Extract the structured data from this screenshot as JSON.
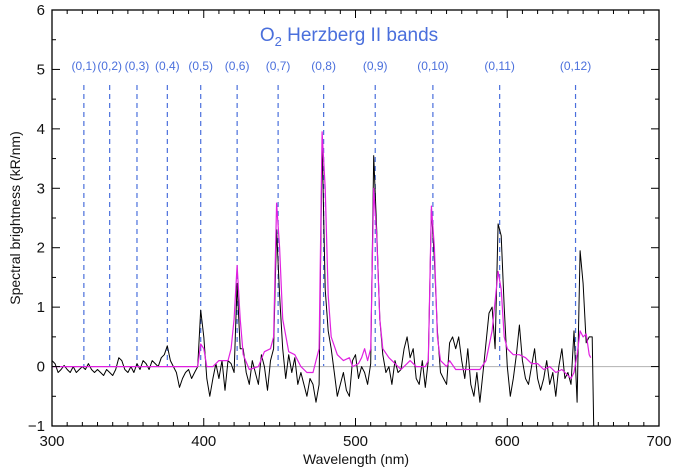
{
  "chart_data": {
    "type": "line",
    "title_main": "O",
    "title_sub": "2",
    "title_rest": " Herzberg II bands",
    "xlabel": "Wavelength (nm)",
    "ylabel": "Spectral brightness (kR/nm)",
    "xlim": [
      300,
      700
    ],
    "ylim": [
      -1,
      6
    ],
    "xticks": [
      300,
      400,
      500,
      600,
      700
    ],
    "yticks": [
      -1,
      0,
      1,
      2,
      3,
      4,
      5,
      6
    ],
    "grid": false,
    "colors": {
      "measured": "#000000",
      "model": "#e020e0",
      "bands": "#4a6fdc",
      "zero_line": "#bbbbbb"
    },
    "bands": [
      {
        "label": "(0,1)",
        "x": 321
      },
      {
        "label": "(0,2)",
        "x": 338
      },
      {
        "label": "(0,3)",
        "x": 356
      },
      {
        "label": "(0,4)",
        "x": 376
      },
      {
        "label": "(0,5)",
        "x": 398
      },
      {
        "label": "(0,6)",
        "x": 422
      },
      {
        "label": "(0,7)",
        "x": 449
      },
      {
        "label": "(0,8)",
        "x": 479
      },
      {
        "label": "(0,9)",
        "x": 513
      },
      {
        "label": "(0,10)",
        "x": 551
      },
      {
        "label": "(0,11)",
        "x": 595
      },
      {
        "label": "(0,12)",
        "x": 645
      }
    ],
    "series": [
      {
        "points": [
          [
            300,
            0.1
          ],
          [
            302,
            0.05
          ],
          [
            304,
            -0.1
          ],
          [
            306,
            -0.05
          ],
          [
            308,
            0.02
          ],
          [
            310,
            -0.05
          ],
          [
            312,
            -0.1
          ],
          [
            314,
            0
          ],
          [
            316,
            -0.1
          ],
          [
            318,
            -0.05
          ],
          [
            320,
            0
          ],
          [
            322,
            -0.05
          ],
          [
            324,
            0.05
          ],
          [
            326,
            -0.05
          ],
          [
            328,
            -0.1
          ],
          [
            330,
            -0.05
          ],
          [
            332,
            -0.1
          ],
          [
            334,
            -0.15
          ],
          [
            336,
            -0.05
          ],
          [
            338,
            -0.1
          ],
          [
            340,
            -0.15
          ],
          [
            342,
            -0.05
          ],
          [
            344,
            0.15
          ],
          [
            346,
            0.1
          ],
          [
            348,
            -0.05
          ],
          [
            350,
            -0.1
          ],
          [
            352,
            0
          ],
          [
            354,
            -0.1
          ],
          [
            356,
            0.05
          ],
          [
            358,
            -0.05
          ],
          [
            360,
            0.1
          ],
          [
            362,
            0.05
          ],
          [
            364,
            -0.05
          ],
          [
            366,
            0.1
          ],
          [
            368,
            0.05
          ],
          [
            370,
            0
          ],
          [
            372,
            0.15
          ],
          [
            374,
            0.2
          ],
          [
            376,
            0.35
          ],
          [
            378,
            0.1
          ],
          [
            380,
            0
          ],
          [
            382,
            -0.1
          ],
          [
            384,
            -0.35
          ],
          [
            386,
            -0.2
          ],
          [
            388,
            -0.1
          ],
          [
            390,
            -0.05
          ],
          [
            392,
            -0.2
          ],
          [
            394,
            -0.1
          ],
          [
            396,
            0
          ],
          [
            398,
            0.95
          ],
          [
            400,
            0.5
          ],
          [
            402,
            -0.2
          ],
          [
            404,
            -0.5
          ],
          [
            406,
            -0.2
          ],
          [
            408,
            0.05
          ],
          [
            410,
            -0.2
          ],
          [
            412,
            0.1
          ],
          [
            414,
            -0.4
          ],
          [
            416,
            0.1
          ],
          [
            418,
            0.05
          ],
          [
            420,
            -0.1
          ],
          [
            422,
            1.4
          ],
          [
            424,
            0.3
          ],
          [
            426,
            0.3
          ],
          [
            428,
            -0.1
          ],
          [
            430,
            -0.3
          ],
          [
            432,
            0.1
          ],
          [
            434,
            -0.1
          ],
          [
            436,
            -0.3
          ],
          [
            438,
            0.2
          ],
          [
            440,
            0
          ],
          [
            442,
            -0.4
          ],
          [
            444,
            0.1
          ],
          [
            446,
            0.3
          ],
          [
            448,
            2.3
          ],
          [
            450,
            1.2
          ],
          [
            452,
            0.3
          ],
          [
            454,
            -0.2
          ],
          [
            456,
            0.2
          ],
          [
            458,
            -0.1
          ],
          [
            460,
            0.15
          ],
          [
            462,
            -0.3
          ],
          [
            464,
            -0.1
          ],
          [
            466,
            -0.3
          ],
          [
            468,
            -0.5
          ],
          [
            470,
            -0.2
          ],
          [
            472,
            -0.3
          ],
          [
            474,
            -0.6
          ],
          [
            476,
            -0.3
          ],
          [
            478,
            3.8
          ],
          [
            480,
            1.3
          ],
          [
            482,
            0.6
          ],
          [
            484,
            0.3
          ],
          [
            486,
            -0.1
          ],
          [
            488,
            -0.5
          ],
          [
            490,
            -0.3
          ],
          [
            492,
            -0.1
          ],
          [
            494,
            -0.4
          ],
          [
            496,
            -0.5
          ],
          [
            498,
            0.1
          ],
          [
            500,
            0.2
          ],
          [
            502,
            -0.2
          ],
          [
            504,
            0
          ],
          [
            506,
            -0.1
          ],
          [
            508,
            -0.3
          ],
          [
            510,
            0.05
          ],
          [
            512,
            3.55
          ],
          [
            514,
            2.3
          ],
          [
            516,
            0.8
          ],
          [
            518,
            0.2
          ],
          [
            520,
            -0.1
          ],
          [
            522,
            0
          ],
          [
            524,
            -0.3
          ],
          [
            526,
            0.1
          ],
          [
            528,
            -0.1
          ],
          [
            530,
            -0.05
          ],
          [
            532,
            0.3
          ],
          [
            534,
            0.5
          ],
          [
            536,
            0.15
          ],
          [
            538,
            0.3
          ],
          [
            540,
            -0.2
          ],
          [
            542,
            -0.3
          ],
          [
            544,
            0.1
          ],
          [
            546,
            -0.35
          ],
          [
            548,
            0.1
          ],
          [
            550,
            2.65
          ],
          [
            552,
            1.8
          ],
          [
            554,
            0.6
          ],
          [
            556,
            -0.1
          ],
          [
            558,
            -0.2
          ],
          [
            560,
            -0.3
          ],
          [
            562,
            0.4
          ],
          [
            564,
            0.5
          ],
          [
            566,
            0.3
          ],
          [
            568,
            0.5
          ],
          [
            570,
            0.1
          ],
          [
            572,
            -0.2
          ],
          [
            574,
            0.3
          ],
          [
            576,
            -0.3
          ],
          [
            578,
            -0.5
          ],
          [
            580,
            -0.1
          ],
          [
            582,
            -0.6
          ],
          [
            584,
            -0.1
          ],
          [
            586,
            0.4
          ],
          [
            588,
            0.9
          ],
          [
            590,
            1.0
          ],
          [
            592,
            0.3
          ],
          [
            594,
            2.4
          ],
          [
            596,
            2.2
          ],
          [
            598,
            1.0
          ],
          [
            600,
            0
          ],
          [
            602,
            -0.5
          ],
          [
            604,
            -0.2
          ],
          [
            606,
            0.2
          ],
          [
            608,
            0.7
          ],
          [
            610,
            0.1
          ],
          [
            612,
            -0.2
          ],
          [
            614,
            -0.3
          ],
          [
            616,
            0
          ],
          [
            618,
            0.3
          ],
          [
            620,
            -0.2
          ],
          [
            622,
            -0.4
          ],
          [
            624,
            -0.2
          ],
          [
            626,
            0.1
          ],
          [
            628,
            -0.3
          ],
          [
            630,
            -0.1
          ],
          [
            632,
            -0.5
          ],
          [
            634,
            0
          ],
          [
            636,
            0.3
          ],
          [
            638,
            -0.2
          ],
          [
            640,
            -0.1
          ],
          [
            642,
            -0.3
          ],
          [
            644,
            0.6
          ],
          [
            646,
            -0.6
          ],
          [
            647,
            0.7
          ],
          [
            648,
            1.95
          ],
          [
            650,
            1.4
          ],
          [
            652,
            0.4
          ],
          [
            654,
            0.5
          ],
          [
            656,
            0.5
          ],
          [
            657,
            -1.0
          ]
        ]
      },
      {
        "points": [
          [
            300,
            0
          ],
          [
            396,
            0
          ],
          [
            398,
            0.38
          ],
          [
            400,
            0.3
          ],
          [
            402,
            0
          ],
          [
            406,
            0
          ],
          [
            410,
            0.1
          ],
          [
            416,
            0.1
          ],
          [
            418,
            0.3
          ],
          [
            420,
            0.8
          ],
          [
            422,
            1.7
          ],
          [
            424,
            0.8
          ],
          [
            426,
            0.2
          ],
          [
            430,
            -0.05
          ],
          [
            436,
            0
          ],
          [
            440,
            0.25
          ],
          [
            444,
            0.3
          ],
          [
            446,
            0.5
          ],
          [
            448,
            2.75
          ],
          [
            450,
            2.0
          ],
          [
            452,
            0.8
          ],
          [
            456,
            0.25
          ],
          [
            460,
            0.2
          ],
          [
            464,
            0
          ],
          [
            468,
            -0.1
          ],
          [
            472,
            -0.1
          ],
          [
            474,
            0.1
          ],
          [
            476,
            0.3
          ],
          [
            478,
            3.95
          ],
          [
            480,
            3.0
          ],
          [
            482,
            1.2
          ],
          [
            484,
            0.5
          ],
          [
            488,
            0.2
          ],
          [
            492,
            0.1
          ],
          [
            496,
            0.15
          ],
          [
            498,
            0
          ],
          [
            502,
            0.05
          ],
          [
            504,
            0.15
          ],
          [
            506,
            0.3
          ],
          [
            508,
            0.1
          ],
          [
            510,
            0.3
          ],
          [
            512,
            3.0
          ],
          [
            514,
            2.2
          ],
          [
            516,
            0.8
          ],
          [
            518,
            0.3
          ],
          [
            522,
            0.15
          ],
          [
            526,
            0.05
          ],
          [
            530,
            -0.05
          ],
          [
            534,
            0.05
          ],
          [
            536,
            0.1
          ],
          [
            540,
            0
          ],
          [
            546,
            0
          ],
          [
            548,
            0.1
          ],
          [
            550,
            2.7
          ],
          [
            552,
            2.0
          ],
          [
            554,
            0.5
          ],
          [
            556,
            0.1
          ],
          [
            560,
            0
          ],
          [
            562,
            0.1
          ],
          [
            566,
            -0.05
          ],
          [
            572,
            -0.05
          ],
          [
            578,
            -0.05
          ],
          [
            582,
            -0.05
          ],
          [
            586,
            0.1
          ],
          [
            590,
            0.6
          ],
          [
            592,
            1.1
          ],
          [
            594,
            1.6
          ],
          [
            596,
            1.3
          ],
          [
            598,
            0.5
          ],
          [
            600,
            0.3
          ],
          [
            604,
            0.2
          ],
          [
            608,
            0.2
          ],
          [
            612,
            0.15
          ],
          [
            616,
            0.05
          ],
          [
            620,
            0.05
          ],
          [
            624,
            -0.05
          ],
          [
            628,
            0
          ],
          [
            632,
            -0.1
          ],
          [
            636,
            -0.05
          ],
          [
            638,
            -0.1
          ],
          [
            642,
            -0.2
          ],
          [
            644,
            -0.1
          ],
          [
            646,
            0.2
          ],
          [
            648,
            0.6
          ],
          [
            650,
            0.5
          ],
          [
            652,
            0.55
          ],
          [
            654,
            0.2
          ],
          [
            655,
            0.15
          ]
        ]
      }
    ]
  }
}
